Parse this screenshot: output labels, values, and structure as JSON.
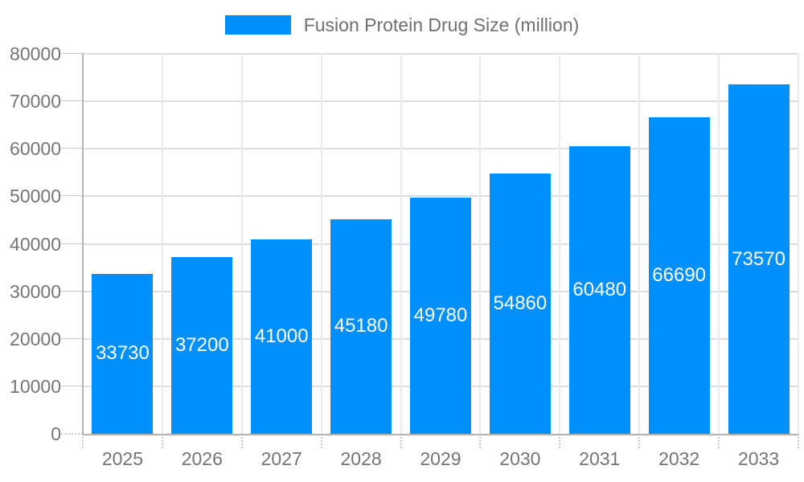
{
  "legend": {
    "label": "Fusion Protein Drug Size (million)"
  },
  "chart_data": {
    "type": "bar",
    "title": "Fusion Protein Drug Size (million)",
    "categories": [
      "2025",
      "2026",
      "2027",
      "2028",
      "2029",
      "2030",
      "2031",
      "2032",
      "2033"
    ],
    "values": [
      33730,
      37200,
      41000,
      45180,
      49780,
      54860,
      60480,
      66690,
      73570
    ],
    "series": [
      {
        "name": "Fusion Protein Drug Size (million)",
        "values": [
          33730,
          37200,
          41000,
          45180,
          49780,
          54860,
          60480,
          66690,
          73570
        ]
      }
    ],
    "xlabel": "",
    "ylabel": "",
    "ylim": [
      0,
      80000
    ],
    "yticks": [
      0,
      10000,
      20000,
      30000,
      40000,
      50000,
      60000,
      70000,
      80000
    ],
    "grid": true,
    "legend_position": "top",
    "value_labels": "inside-center",
    "colors": {
      "bar": "#008FFB",
      "value_label": "#ffffff",
      "axis_label": "#757575",
      "legend_label": "#6f6f74",
      "gridline": "#dedede",
      "v_gridline": "#eaeaea",
      "axis_line": "#b3b3b3",
      "tick": "#c9c9c9",
      "background": "#ffffff"
    }
  }
}
